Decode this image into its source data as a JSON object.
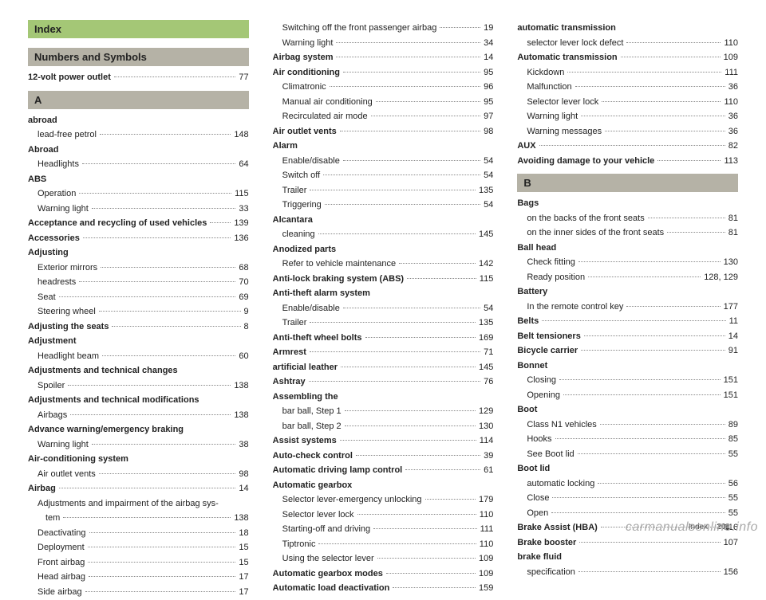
{
  "index_title": "Index",
  "footer_label": "Index",
  "footer_page": "201",
  "watermark": "carmanualsonline.info",
  "sections": {
    "numsym": "Numbers and Symbols",
    "A": "A",
    "B": "B"
  },
  "col1": [
    {
      "t": "header",
      "key": "index-title",
      "text": "Index",
      "cls": "index-title"
    },
    {
      "t": "header",
      "key": "numsym",
      "text": "Numbers and Symbols",
      "cls": "section-letter"
    },
    {
      "t": "entry",
      "bold": true,
      "label": "12-volt power outlet",
      "page": "77"
    },
    {
      "t": "header",
      "key": "A",
      "text": "A",
      "cls": "section-letter"
    },
    {
      "t": "entry",
      "bold": true,
      "label": "abroad",
      "nopage": true
    },
    {
      "t": "entry",
      "sub": true,
      "label": "lead-free petrol",
      "page": "148"
    },
    {
      "t": "entry",
      "bold": true,
      "label": "Abroad",
      "nopage": true
    },
    {
      "t": "entry",
      "sub": true,
      "label": "Headlights",
      "page": "64"
    },
    {
      "t": "entry",
      "bold": true,
      "label": "ABS",
      "nopage": true
    },
    {
      "t": "entry",
      "sub": true,
      "label": "Operation",
      "page": "115"
    },
    {
      "t": "entry",
      "sub": true,
      "label": "Warning light",
      "page": "33"
    },
    {
      "t": "entry",
      "bold": true,
      "label": "Acceptance and recycling of used vehicles",
      "page": "139"
    },
    {
      "t": "entry",
      "bold": true,
      "label": "Accessories",
      "page": "136"
    },
    {
      "t": "entry",
      "bold": true,
      "label": "Adjusting",
      "nopage": true
    },
    {
      "t": "entry",
      "sub": true,
      "label": "Exterior mirrors",
      "page": "68"
    },
    {
      "t": "entry",
      "sub": true,
      "label": "headrests",
      "page": "70"
    },
    {
      "t": "entry",
      "sub": true,
      "label": "Seat",
      "page": "69"
    },
    {
      "t": "entry",
      "sub": true,
      "label": "Steering wheel",
      "page": "9"
    },
    {
      "t": "entry",
      "bold": true,
      "label": "Adjusting the seats",
      "page": "8"
    },
    {
      "t": "entry",
      "bold": true,
      "label": "Adjustment",
      "nopage": true
    },
    {
      "t": "entry",
      "sub": true,
      "label": "Headlight beam",
      "page": "60"
    },
    {
      "t": "entry",
      "bold": true,
      "label": "Adjustments and technical changes",
      "nopage": true
    },
    {
      "t": "entry",
      "sub": true,
      "label": "Spoiler",
      "page": "138"
    },
    {
      "t": "entry",
      "bold": true,
      "label": "Adjustments and technical modifications",
      "nopage": true
    },
    {
      "t": "entry",
      "sub": true,
      "label": "Airbags",
      "page": "138"
    },
    {
      "t": "entry",
      "bold": true,
      "label": "Advance warning/emergency braking",
      "nopage": true
    },
    {
      "t": "entry",
      "sub": true,
      "label": "Warning light",
      "page": "38"
    },
    {
      "t": "entry",
      "bold": true,
      "label": "Air-conditioning system",
      "nopage": true
    },
    {
      "t": "entry",
      "sub": true,
      "label": "Air outlet vents",
      "page": "98"
    },
    {
      "t": "entry",
      "bold": true,
      "label": "Airbag",
      "page": "14"
    },
    {
      "t": "entry",
      "sub": true,
      "label": "Adjustments and impairment of the airbag sys-",
      "nopage": true
    },
    {
      "t": "entry",
      "sub": true,
      "label": "  tem",
      "page": "138",
      "extraindent": true
    },
    {
      "t": "entry",
      "sub": true,
      "label": "Deactivating",
      "page": "18"
    },
    {
      "t": "entry",
      "sub": true,
      "label": "Deployment",
      "page": "15"
    },
    {
      "t": "entry",
      "sub": true,
      "label": "Front airbag",
      "page": "15"
    },
    {
      "t": "entry",
      "sub": true,
      "label": "Head airbag",
      "page": "17"
    },
    {
      "t": "entry",
      "sub": true,
      "label": "Side airbag",
      "page": "17"
    }
  ],
  "col2": [
    {
      "t": "entry",
      "sub": true,
      "label": "Switching off the front passenger airbag",
      "page": "19"
    },
    {
      "t": "entry",
      "sub": true,
      "label": "Warning light",
      "page": "34"
    },
    {
      "t": "entry",
      "bold": true,
      "label": "Airbag system",
      "page": "14"
    },
    {
      "t": "entry",
      "bold": true,
      "label": "Air conditioning",
      "page": "95"
    },
    {
      "t": "entry",
      "sub": true,
      "label": "Climatronic",
      "page": "96"
    },
    {
      "t": "entry",
      "sub": true,
      "label": "Manual air conditioning",
      "page": "95"
    },
    {
      "t": "entry",
      "sub": true,
      "label": "Recirculated air mode",
      "page": "97"
    },
    {
      "t": "entry",
      "bold": true,
      "label": "Air outlet vents",
      "page": "98"
    },
    {
      "t": "entry",
      "bold": true,
      "label": "Alarm",
      "nopage": true
    },
    {
      "t": "entry",
      "sub": true,
      "label": "Enable/disable",
      "page": "54"
    },
    {
      "t": "entry",
      "sub": true,
      "label": "Switch off",
      "page": "54"
    },
    {
      "t": "entry",
      "sub": true,
      "label": "Trailer",
      "page": "135"
    },
    {
      "t": "entry",
      "sub": true,
      "label": "Triggering",
      "page": "54"
    },
    {
      "t": "entry",
      "bold": true,
      "label": "Alcantara",
      "nopage": true
    },
    {
      "t": "entry",
      "sub": true,
      "label": "cleaning",
      "page": "145"
    },
    {
      "t": "entry",
      "bold": true,
      "label": "Anodized parts",
      "nopage": true
    },
    {
      "t": "entry",
      "sub": true,
      "label": "Refer to vehicle maintenance",
      "page": "142"
    },
    {
      "t": "entry",
      "bold": true,
      "label": "Anti-lock braking system (ABS)",
      "page": "115"
    },
    {
      "t": "entry",
      "bold": true,
      "label": "Anti-theft alarm system",
      "nopage": true
    },
    {
      "t": "entry",
      "sub": true,
      "label": "Enable/disable",
      "page": "54"
    },
    {
      "t": "entry",
      "sub": true,
      "label": "Trailer",
      "page": "135"
    },
    {
      "t": "entry",
      "bold": true,
      "label": "Anti-theft wheel bolts",
      "page": "169"
    },
    {
      "t": "entry",
      "bold": true,
      "label": "Armrest",
      "page": "71"
    },
    {
      "t": "entry",
      "bold": true,
      "label": "artificial leather",
      "page": "145"
    },
    {
      "t": "entry",
      "bold": true,
      "label": "Ashtray",
      "page": "76"
    },
    {
      "t": "entry",
      "bold": true,
      "label": "Assembling the",
      "nopage": true
    },
    {
      "t": "entry",
      "sub": true,
      "label": "bar ball, Step 1",
      "page": "129"
    },
    {
      "t": "entry",
      "sub": true,
      "label": "bar ball, Step 2",
      "page": "130"
    },
    {
      "t": "entry",
      "bold": true,
      "label": "Assist systems",
      "page": "114"
    },
    {
      "t": "entry",
      "bold": true,
      "label": "Auto-check control",
      "page": "39"
    },
    {
      "t": "entry",
      "bold": true,
      "label": "Automatic driving lamp control",
      "page": "61"
    },
    {
      "t": "entry",
      "bold": true,
      "label": "Automatic gearbox",
      "nopage": true
    },
    {
      "t": "entry",
      "sub": true,
      "label": "Selector lever-emergency unlocking",
      "page": "179"
    },
    {
      "t": "entry",
      "sub": true,
      "label": "Selector lever lock",
      "page": "110"
    },
    {
      "t": "entry",
      "sub": true,
      "label": "Starting-off and driving",
      "page": "111"
    },
    {
      "t": "entry",
      "sub": true,
      "label": "Tiptronic",
      "page": "110"
    },
    {
      "t": "entry",
      "sub": true,
      "label": "Using the selector lever",
      "page": "109"
    },
    {
      "t": "entry",
      "bold": true,
      "label": "Automatic gearbox modes",
      "page": "109"
    },
    {
      "t": "entry",
      "bold": true,
      "label": "Automatic load deactivation",
      "page": "159"
    }
  ],
  "col3": [
    {
      "t": "entry",
      "bold": true,
      "label": "automatic transmission",
      "nopage": true
    },
    {
      "t": "entry",
      "sub": true,
      "label": "selector lever lock defect",
      "page": "110"
    },
    {
      "t": "entry",
      "bold": true,
      "label": "Automatic transmission",
      "page": "109"
    },
    {
      "t": "entry",
      "sub": true,
      "label": "Kickdown",
      "page": "111"
    },
    {
      "t": "entry",
      "sub": true,
      "label": "Malfunction",
      "page": "36"
    },
    {
      "t": "entry",
      "sub": true,
      "label": "Selector lever lock",
      "page": "110"
    },
    {
      "t": "entry",
      "sub": true,
      "label": "Warning light",
      "page": "36"
    },
    {
      "t": "entry",
      "sub": true,
      "label": "Warning messages",
      "page": "36"
    },
    {
      "t": "entry",
      "bold": true,
      "label": "AUX",
      "page": "82"
    },
    {
      "t": "entry",
      "bold": true,
      "label": "Avoiding damage to your vehicle",
      "page": "113"
    },
    {
      "t": "header",
      "key": "B",
      "text": "B",
      "cls": "section-letter"
    },
    {
      "t": "entry",
      "bold": true,
      "label": "Bags",
      "nopage": true
    },
    {
      "t": "entry",
      "sub": true,
      "label": "on the backs of the front seats",
      "page": "81"
    },
    {
      "t": "entry",
      "sub": true,
      "label": "on the inner sides of the front seats",
      "page": "81"
    },
    {
      "t": "entry",
      "bold": true,
      "label": "Ball head",
      "nopage": true
    },
    {
      "t": "entry",
      "sub": true,
      "label": "Check fitting",
      "page": "130"
    },
    {
      "t": "entry",
      "sub": true,
      "label": "Ready position",
      "page": "128, 129"
    },
    {
      "t": "entry",
      "bold": true,
      "label": "Battery",
      "nopage": true
    },
    {
      "t": "entry",
      "sub": true,
      "label": "In the remote control key",
      "page": "177"
    },
    {
      "t": "entry",
      "bold": true,
      "label": "Belts",
      "page": "11"
    },
    {
      "t": "entry",
      "bold": true,
      "label": "Belt tensioners",
      "page": "14"
    },
    {
      "t": "entry",
      "bold": true,
      "label": "Bicycle carrier",
      "page": "91"
    },
    {
      "t": "entry",
      "bold": true,
      "label": "Bonnet",
      "nopage": true
    },
    {
      "t": "entry",
      "sub": true,
      "label": "Closing",
      "page": "151"
    },
    {
      "t": "entry",
      "sub": true,
      "label": "Opening",
      "page": "151"
    },
    {
      "t": "entry",
      "bold": true,
      "label": "Boot",
      "nopage": true
    },
    {
      "t": "entry",
      "sub": true,
      "label": "Class N1 vehicles",
      "page": "89"
    },
    {
      "t": "entry",
      "sub": true,
      "label": "Hooks",
      "page": "85"
    },
    {
      "t": "entry",
      "sub": true,
      "label": "See Boot lid",
      "page": "55"
    },
    {
      "t": "entry",
      "bold": true,
      "label": "Boot lid",
      "nopage": true
    },
    {
      "t": "entry",
      "sub": true,
      "label": "automatic locking",
      "page": "56"
    },
    {
      "t": "entry",
      "sub": true,
      "label": "Close",
      "page": "55"
    },
    {
      "t": "entry",
      "sub": true,
      "label": "Open",
      "page": "55"
    },
    {
      "t": "entry",
      "bold": true,
      "label": "Brake Assist (HBA)",
      "page": "116"
    },
    {
      "t": "entry",
      "bold": true,
      "label": "Brake booster",
      "page": "107"
    },
    {
      "t": "entry",
      "bold": true,
      "label": "brake fluid",
      "nopage": true
    },
    {
      "t": "entry",
      "sub": true,
      "label": "specification",
      "page": "156"
    }
  ]
}
